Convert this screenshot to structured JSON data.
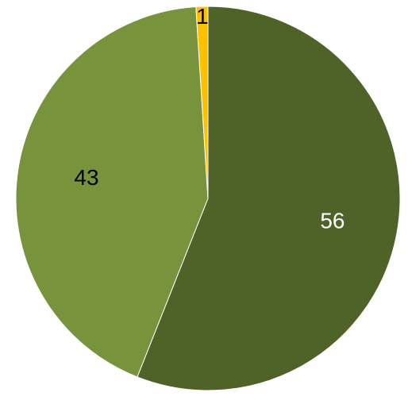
{
  "chart_data": {
    "type": "pie",
    "title": "",
    "slices": [
      {
        "value": 56,
        "label": "56",
        "color": "#4f6228",
        "label_color": "#ffffff"
      },
      {
        "value": 43,
        "label": "43",
        "color": "#77933c",
        "label_color": "#000000"
      },
      {
        "value": 1,
        "label": "1",
        "color": "#ffc000",
        "label_color": "#000000"
      }
    ],
    "start_angle_deg": 0,
    "direction": "clockwise",
    "legend": "none",
    "data_labels": true
  }
}
